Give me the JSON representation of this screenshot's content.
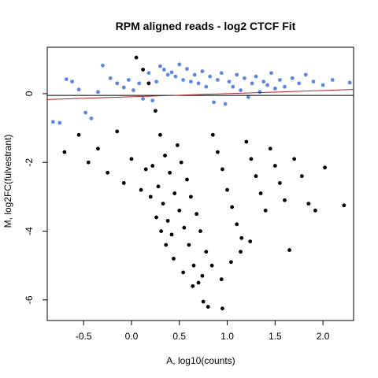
{
  "chart_data": {
    "type": "scatter",
    "title": "RPM aligned reads - log2 CTCF Fit",
    "xlabel": "A, log10(counts)",
    "ylabel": "M, log2FC(fulvestrant)",
    "xlim": [
      -0.88,
      2.32
    ],
    "ylim": [
      -6.6,
      1.35
    ],
    "x_ticks": [
      -0.5,
      0.0,
      0.5,
      1.0,
      1.5,
      2.0
    ],
    "x_tick_labels": [
      "-0.5",
      "0.0",
      "0.5",
      "1.0",
      "1.5",
      "2.0"
    ],
    "y_ticks": [
      0,
      -2,
      -4,
      -6
    ],
    "y_tick_labels": [
      "0",
      "-2",
      "-4",
      "-6"
    ],
    "grid": false,
    "colors": {
      "background": "#ffffff",
      "series_black": "#000000",
      "series_blue": "#5b87e0",
      "fit_line": "#000000",
      "fit_line_red": "#b22222"
    },
    "series": [
      {
        "color_key": "series_blue",
        "points": [
          [
            -0.82,
            -0.82
          ],
          [
            -0.75,
            -0.85
          ],
          [
            -0.68,
            0.42
          ],
          [
            -0.62,
            0.35
          ],
          [
            -0.55,
            0.12
          ],
          [
            -0.48,
            -0.55
          ],
          [
            -0.42,
            -0.72
          ],
          [
            -0.35,
            0.05
          ],
          [
            -0.3,
            0.82
          ],
          [
            -0.22,
            0.45
          ],
          [
            -0.15,
            0.3
          ],
          [
            -0.08,
            0.18
          ],
          [
            -0.03,
            0.4
          ],
          [
            0.02,
            0.1
          ],
          [
            0.08,
            0.3
          ],
          [
            0.12,
            -0.15
          ],
          [
            0.18,
            0.6
          ],
          [
            0.22,
            -0.2
          ],
          [
            0.26,
            0.35
          ],
          [
            0.3,
            0.8
          ],
          [
            0.34,
            0.7
          ],
          [
            0.38,
            0.55
          ],
          [
            0.42,
            0.62
          ],
          [
            0.46,
            0.5
          ],
          [
            0.5,
            0.85
          ],
          [
            0.54,
            0.4
          ],
          [
            0.58,
            0.72
          ],
          [
            0.62,
            0.35
          ],
          [
            0.66,
            0.55
          ],
          [
            0.7,
            0.3
          ],
          [
            0.74,
            0.65
          ],
          [
            0.78,
            0.2
          ],
          [
            0.82,
            0.5
          ],
          [
            0.86,
            -0.25
          ],
          [
            0.9,
            0.4
          ],
          [
            0.94,
            0.6
          ],
          [
            0.98,
            -0.3
          ],
          [
            1.02,
            0.35
          ],
          [
            1.06,
            0.2
          ],
          [
            1.1,
            0.55
          ],
          [
            1.14,
            0.1
          ],
          [
            1.18,
            0.45
          ],
          [
            1.22,
            -0.1
          ],
          [
            1.26,
            0.3
          ],
          [
            1.3,
            0.5
          ],
          [
            1.34,
            0.05
          ],
          [
            1.38,
            0.35
          ],
          [
            1.42,
            0.25
          ],
          [
            1.46,
            0.6
          ],
          [
            1.5,
            0.15
          ],
          [
            1.55,
            0.4
          ],
          [
            1.6,
            0.2
          ],
          [
            1.68,
            0.45
          ],
          [
            1.75,
            0.3
          ],
          [
            1.82,
            0.55
          ],
          [
            1.9,
            0.35
          ],
          [
            2.0,
            0.25
          ],
          [
            2.1,
            0.4
          ],
          [
            2.28,
            0.32
          ]
        ]
      },
      {
        "color_key": "series_black",
        "points": [
          [
            0.05,
            1.05
          ],
          [
            0.12,
            0.7
          ],
          [
            0.18,
            0.3
          ],
          [
            0.25,
            -0.5
          ],
          [
            0.3,
            -1.2
          ],
          [
            0.35,
            -1.8
          ],
          [
            0.4,
            -2.3
          ],
          [
            0.45,
            -2.9
          ],
          [
            0.5,
            -3.4
          ],
          [
            0.55,
            -3.9
          ],
          [
            0.6,
            -4.4
          ],
          [
            0.65,
            -5.0
          ],
          [
            0.7,
            -5.5
          ],
          [
            0.75,
            -6.05
          ],
          [
            0.8,
            -6.2
          ],
          [
            0.95,
            -6.25
          ],
          [
            0.22,
            -2.1
          ],
          [
            0.28,
            -2.7
          ],
          [
            0.33,
            -3.2
          ],
          [
            0.38,
            -3.7
          ],
          [
            0.42,
            -4.1
          ],
          [
            0.48,
            -1.5
          ],
          [
            0.52,
            -2.0
          ],
          [
            0.58,
            -2.5
          ],
          [
            0.62,
            -3.0
          ],
          [
            0.68,
            -3.5
          ],
          [
            0.72,
            -4.0
          ],
          [
            0.78,
            -4.6
          ],
          [
            0.85,
            -1.2
          ],
          [
            0.9,
            -1.7
          ],
          [
            0.95,
            -2.2
          ],
          [
            1.0,
            -2.8
          ],
          [
            1.05,
            -3.3
          ],
          [
            1.1,
            -3.8
          ],
          [
            1.15,
            -4.2
          ],
          [
            1.2,
            -1.4
          ],
          [
            1.25,
            -1.9
          ],
          [
            1.3,
            -2.4
          ],
          [
            1.35,
            -2.9
          ],
          [
            1.4,
            -3.4
          ],
          [
            1.45,
            -1.6
          ],
          [
            1.5,
            -2.1
          ],
          [
            1.55,
            -2.6
          ],
          [
            1.6,
            -3.1
          ],
          [
            1.65,
            -4.55
          ],
          [
            1.7,
            -1.9
          ],
          [
            1.78,
            -2.4
          ],
          [
            1.85,
            -3.2
          ],
          [
            1.92,
            -3.4
          ],
          [
            2.02,
            -2.15
          ],
          [
            2.22,
            -3.25
          ],
          [
            -0.7,
            -1.7
          ],
          [
            -0.55,
            -1.2
          ],
          [
            -0.45,
            -2.0
          ],
          [
            -0.35,
            -1.6
          ],
          [
            -0.25,
            -2.3
          ],
          [
            -0.15,
            -1.1
          ],
          [
            -0.08,
            -2.6
          ],
          [
            0.0,
            -1.9
          ],
          [
            0.1,
            -2.8
          ],
          [
            0.15,
            -2.2
          ],
          [
            0.2,
            -3.0
          ],
          [
            0.26,
            -3.6
          ],
          [
            0.31,
            -4.0
          ],
          [
            0.36,
            -4.4
          ],
          [
            0.44,
            -4.8
          ],
          [
            0.54,
            -5.2
          ],
          [
            0.64,
            -5.6
          ],
          [
            0.74,
            -5.3
          ],
          [
            0.84,
            -5.0
          ],
          [
            0.94,
            -5.4
          ],
          [
            1.04,
            -4.9
          ],
          [
            1.14,
            -4.6
          ],
          [
            1.24,
            -4.3
          ]
        ]
      }
    ],
    "fit_lines": [
      {
        "color_key": "fit_line",
        "points": [
          [
            -0.88,
            -0.05
          ],
          [
            2.32,
            -0.05
          ]
        ]
      },
      {
        "color_key": "fit_line_red",
        "points": [
          [
            -0.88,
            -0.17
          ],
          [
            2.32,
            0.12
          ]
        ]
      }
    ]
  }
}
